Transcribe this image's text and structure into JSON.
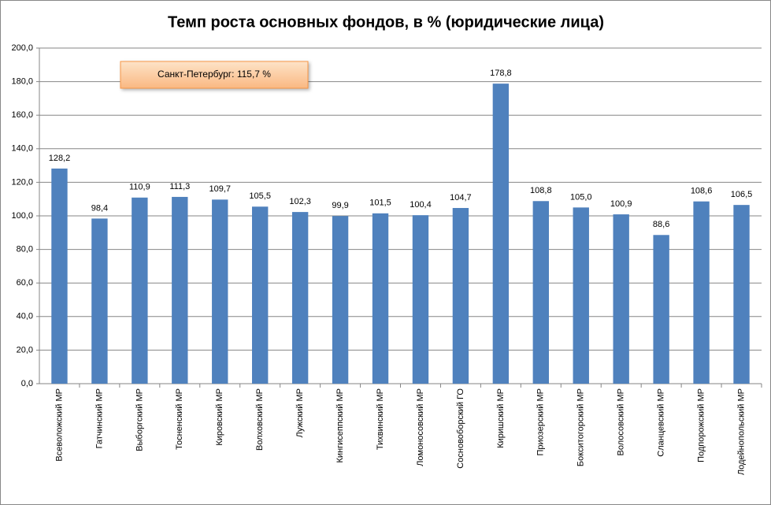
{
  "chart_data": {
    "type": "bar",
    "title": "Темп роста основных фондов, в % (юридические лица)",
    "annotation": "Санкт-Петербург: 115,7 %",
    "categories": [
      "Всеволожский МР",
      "Гатчинский МР",
      "Выборгский МР",
      "Тосненский МР",
      "Кировский МР",
      "Волховский МР",
      "Лужский МР",
      "Кингисеппский МР",
      "Тихвинский МР",
      "Ломоносовский МР",
      "Сосновоборский ГО",
      "Киришский МР",
      "Приозерский МР",
      "Бокситогорский МР",
      "Волосовский МР",
      "Сланцевский МР",
      "Подпорожский МР",
      "Лодейнопольский МР"
    ],
    "values": [
      128.2,
      98.4,
      110.9,
      111.3,
      109.7,
      105.5,
      102.3,
      99.9,
      101.5,
      100.4,
      104.7,
      178.8,
      108.8,
      105.0,
      100.9,
      88.6,
      108.6,
      106.5
    ],
    "value_labels": [
      "128,2",
      "98,4",
      "110,9",
      "111,3",
      "109,7",
      "105,5",
      "102,3",
      "99,9",
      "101,5",
      "100,4",
      "104,7",
      "178,8",
      "108,8",
      "105,0",
      "100,9",
      "88,6",
      "108,6",
      "106,5"
    ],
    "color": "#4f81bd",
    "ylim": [
      0,
      200
    ],
    "yticks": [
      {
        "value": 0,
        "label": "0,0"
      },
      {
        "value": 20,
        "label": "20,0"
      },
      {
        "value": 40,
        "label": "40,0"
      },
      {
        "value": 60,
        "label": "60,0"
      },
      {
        "value": 80,
        "label": "80,0"
      },
      {
        "value": 100,
        "label": "100,0"
      },
      {
        "value": 120,
        "label": "120,0"
      },
      {
        "value": 140,
        "label": "140,0"
      },
      {
        "value": 160,
        "label": "160,0"
      },
      {
        "value": 180,
        "label": "180,0"
      },
      {
        "value": 200,
        "label": "200,0"
      }
    ],
    "grid": true
  }
}
